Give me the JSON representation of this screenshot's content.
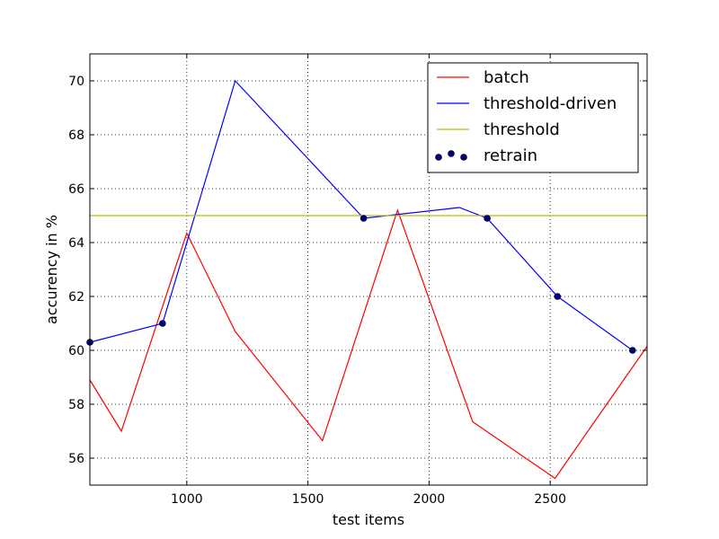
{
  "chart_data": {
    "type": "line",
    "title": "",
    "xlabel": "test items",
    "ylabel": "accurency in %",
    "xlim": [
      600,
      2900
    ],
    "ylim": [
      55,
      71
    ],
    "x_ticks": [
      1000,
      1500,
      2000,
      2500
    ],
    "y_ticks": [
      56,
      58,
      60,
      62,
      64,
      66,
      68,
      70
    ],
    "grid": true,
    "legend_position": "top-right",
    "series": [
      {
        "name": "batch",
        "kind": "line",
        "color": "#ff0000",
        "points": [
          [
            600,
            58.9
          ],
          [
            730,
            57.0
          ],
          [
            1000,
            64.35
          ],
          [
            1200,
            60.7
          ],
          [
            1560,
            56.65
          ],
          [
            1870,
            65.2
          ],
          [
            2180,
            57.35
          ],
          [
            2520,
            55.25
          ],
          [
            2900,
            60.15
          ]
        ]
      },
      {
        "name": "threshold-driven",
        "kind": "line",
        "color": "#0000ff",
        "points": [
          [
            600,
            60.3
          ],
          [
            900,
            61.0
          ],
          [
            1200,
            70.0
          ],
          [
            1730,
            64.9
          ],
          [
            2125,
            65.3
          ],
          [
            2240,
            64.9
          ],
          [
            2530,
            62.0
          ],
          [
            2840,
            60.0
          ]
        ]
      },
      {
        "name": "threshold",
        "kind": "hline",
        "color": "#bfbf00",
        "y": 65
      },
      {
        "name": "retrain",
        "kind": "scatter",
        "color": "#00007f",
        "points": [
          [
            600,
            60.3
          ],
          [
            900,
            61.0
          ],
          [
            1730,
            64.9
          ],
          [
            2240,
            64.9
          ],
          [
            2530,
            62.0
          ],
          [
            2840,
            60.0
          ]
        ]
      }
    ]
  }
}
